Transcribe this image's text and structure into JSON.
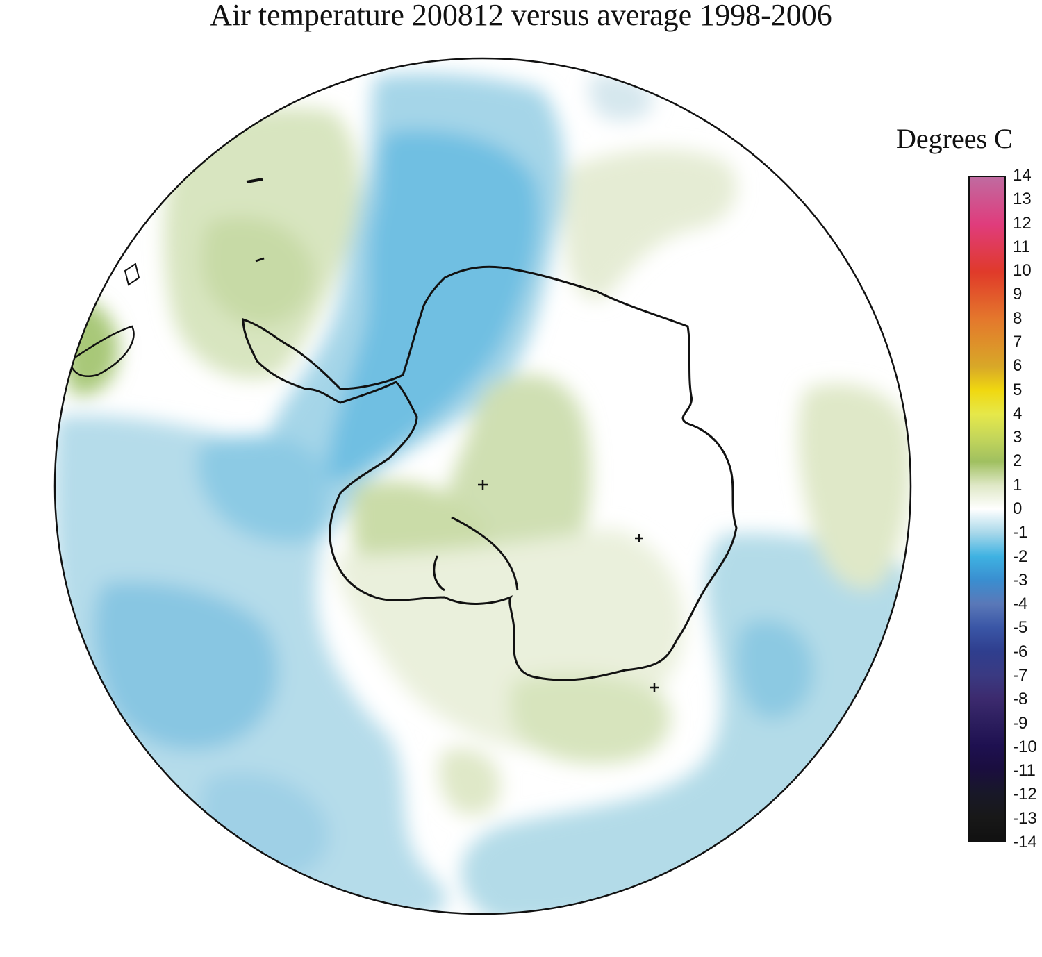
{
  "title": "Air temperature 200812 versus average 1998-2006",
  "legend": {
    "title": "Degrees C",
    "ticks": [
      "14",
      "13",
      "12",
      "11",
      "10",
      "9",
      "8",
      "7",
      "6",
      "5",
      "4",
      "3",
      "2",
      "1",
      "0",
      "-1",
      "-2",
      "-3",
      "-4",
      "-5",
      "-6",
      "-7",
      "-8",
      "-9",
      "-10",
      "-11",
      "-12",
      "-13",
      "-14"
    ],
    "range": [
      -14,
      14
    ],
    "colors": {
      "14": "#c06aa0",
      "12": "#e03c7c",
      "10": "#e03a2a",
      "8": "#e4782c",
      "6": "#d8a828",
      "5": "#f0d810",
      "4": "#e6e84a",
      "3": "#c4d65a",
      "2": "#a0c060",
      "1": "#dfe8c6",
      "0": "#ffffff",
      "-1": "#a8d8ea",
      "-2": "#3eb2e2",
      "-3": "#3a8ed0",
      "-4": "#5a78b8",
      "-5": "#3a56a6",
      "-6": "#2f3e8e",
      "-7": "#3a3a82",
      "-8": "#3c2a6e",
      "-9": "#2c1e5e",
      "-10": "#1e1050",
      "-11": "#1a0e3e",
      "-12": "#181828",
      "-13": "#181818",
      "-14": "#111111"
    }
  },
  "map": {
    "projection": "south-polar-stereographic",
    "region": "Antarctica and Southern Ocean",
    "anomaly_colors": {
      "cold_light": "#d2e8ef",
      "cold_mid": "#a9d7e8",
      "cold_strong": "#7ec4e2",
      "cold_core": "#5fb6e0",
      "warm_light": "#eef2e2",
      "warm_mid": "#dbe6c4",
      "warm_strong": "#c8dba6"
    }
  }
}
